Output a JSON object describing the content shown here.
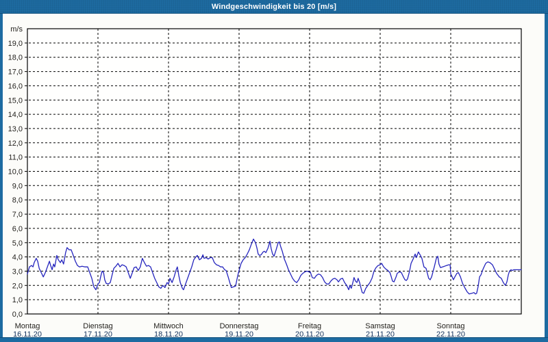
{
  "window": {
    "title": "Windgeschwindigkeit bis 20 [m/s]"
  },
  "colors": {
    "frame": "#1d6ba1",
    "frame_dark": "#0f4e7a",
    "title_text": "#ffffff",
    "plot_bg": "#fffffe",
    "grid": "#000000",
    "line": "#2424bd",
    "tick_label": "#23211d",
    "date_label": "#11305c"
  },
  "chart_data": {
    "type": "line",
    "title": "Windgeschwindigkeit bis 20 [m/s]",
    "ylabel": "m/s",
    "ylim": [
      0,
      20
    ],
    "y_tick_step": 1,
    "decimal_comma": true,
    "grid": "dashed",
    "legend": "none",
    "x_unit": "hours_since_start_of_week",
    "xlim": [
      0,
      168
    ],
    "days": [
      {
        "name": "Montag",
        "date": "16.11.20"
      },
      {
        "name": "Dienstag",
        "date": "17.11.20"
      },
      {
        "name": "Mittwoch",
        "date": "18.11.20"
      },
      {
        "name": "Donnerstag",
        "date": "19.11.20"
      },
      {
        "name": "Freitag",
        "date": "20.11.20"
      },
      {
        "name": "Samstag",
        "date": "21.11.20"
      },
      {
        "name": "Sonntag",
        "date": "22.11.20"
      }
    ],
    "series": [
      {
        "name": "Windgeschwindigkeit",
        "color": "#2424bd",
        "points": [
          [
            0,
            2.8
          ],
          [
            0.7,
            3.3
          ],
          [
            1.4,
            3.4
          ],
          [
            1.9,
            3.3
          ],
          [
            2.3,
            3.6
          ],
          [
            3,
            3.9
          ],
          [
            3.5,
            3.7
          ],
          [
            4,
            3.2
          ],
          [
            4.7,
            2.9
          ],
          [
            5.4,
            2.6
          ],
          [
            6.1,
            2.9
          ],
          [
            6.8,
            3.3
          ],
          [
            7.5,
            3.7
          ],
          [
            7.9,
            3.4
          ],
          [
            8.4,
            3.1
          ],
          [
            8.9,
            3.5
          ],
          [
            9.3,
            3.3
          ],
          [
            10,
            4.1
          ],
          [
            10.5,
            3.8
          ],
          [
            11.2,
            3.6
          ],
          [
            11.7,
            3.8
          ],
          [
            12.3,
            3.5
          ],
          [
            13,
            4.3
          ],
          [
            13.5,
            4.65
          ],
          [
            14.2,
            4.5
          ],
          [
            14.9,
            4.5
          ],
          [
            15.6,
            4.1
          ],
          [
            16.3,
            3.7
          ],
          [
            17,
            3.4
          ],
          [
            17.7,
            3.3
          ],
          [
            18.6,
            3.35
          ],
          [
            19.6,
            3.3
          ],
          [
            20.5,
            3.3
          ],
          [
            21.2,
            2.9
          ],
          [
            21.9,
            2.5
          ],
          [
            22.6,
            1.9
          ],
          [
            23.3,
            1.7
          ],
          [
            24,
            2.1
          ],
          [
            24.5,
            2.2
          ],
          [
            24.9,
            2.6
          ],
          [
            25.4,
            3
          ],
          [
            25.9,
            2.9
          ],
          [
            26.3,
            2.4
          ],
          [
            26.8,
            2.15
          ],
          [
            27.5,
            2.1
          ],
          [
            28.2,
            2.2
          ],
          [
            28.9,
            2.8
          ],
          [
            29.4,
            3.2
          ],
          [
            30.1,
            3.35
          ],
          [
            30.8,
            3.55
          ],
          [
            31.5,
            3.3
          ],
          [
            32.2,
            3.45
          ],
          [
            32.9,
            3.4
          ],
          [
            33.6,
            3.3
          ],
          [
            34.3,
            2.9
          ],
          [
            35,
            2.5
          ],
          [
            35.7,
            2.9
          ],
          [
            36.3,
            3.25
          ],
          [
            37,
            3.3
          ],
          [
            37.7,
            3.05
          ],
          [
            38.4,
            3.3
          ],
          [
            39.1,
            3.9
          ],
          [
            39.8,
            3.6
          ],
          [
            40.5,
            3.35
          ],
          [
            41.2,
            3.4
          ],
          [
            41.9,
            3.3
          ],
          [
            42.6,
            2.9
          ],
          [
            43.3,
            2.5
          ],
          [
            44,
            2.2
          ],
          [
            44.7,
            1.9
          ],
          [
            45.4,
            1.8
          ],
          [
            46.1,
            2
          ],
          [
            46.8,
            1.85
          ],
          [
            47.5,
            2.2
          ],
          [
            48,
            2.1
          ],
          [
            48.5,
            2.5
          ],
          [
            49.2,
            2.2
          ],
          [
            49.9,
            2.6
          ],
          [
            50.6,
            3.1
          ],
          [
            51,
            3.3
          ],
          [
            51.5,
            2.7
          ],
          [
            52,
            2.2
          ],
          [
            52.7,
            1.8
          ],
          [
            53.1,
            1.7
          ],
          [
            53.8,
            2.1
          ],
          [
            54.5,
            2.5
          ],
          [
            55.2,
            2.9
          ],
          [
            55.9,
            3.3
          ],
          [
            56.6,
            3.8
          ],
          [
            57.3,
            4
          ],
          [
            57.8,
            4.1
          ],
          [
            58.5,
            3.8
          ],
          [
            59.2,
            3.9
          ],
          [
            59.7,
            4.15
          ],
          [
            60.1,
            3.9
          ],
          [
            60.8,
            3.95
          ],
          [
            61.5,
            3.85
          ],
          [
            62.2,
            3.95
          ],
          [
            62.9,
            3.95
          ],
          [
            63.6,
            3.6
          ],
          [
            64.3,
            3.45
          ],
          [
            65,
            3.4
          ],
          [
            65.7,
            3.3
          ],
          [
            66.4,
            3.3
          ],
          [
            67.1,
            3.1
          ],
          [
            67.6,
            3.05
          ],
          [
            68.3,
            2.6
          ],
          [
            69,
            2.1
          ],
          [
            69.4,
            1.85
          ],
          [
            70.1,
            1.9
          ],
          [
            70.8,
            1.95
          ],
          [
            71.5,
            2.65
          ],
          [
            72,
            3.05
          ],
          [
            72.7,
            3.55
          ],
          [
            73.4,
            3.8
          ],
          [
            74.1,
            3.95
          ],
          [
            74.8,
            4.2
          ],
          [
            75.5,
            4.5
          ],
          [
            76.2,
            4.9
          ],
          [
            76.9,
            5.25
          ],
          [
            77.6,
            5
          ],
          [
            78.1,
            4.6
          ],
          [
            78.5,
            4.2
          ],
          [
            79,
            4.1
          ],
          [
            79.5,
            4.15
          ],
          [
            80.2,
            4.35
          ],
          [
            80.6,
            4.4
          ],
          [
            81.1,
            4.3
          ],
          [
            81.8,
            4.6
          ],
          [
            82.5,
            5.1
          ],
          [
            82.9,
            4.6
          ],
          [
            83.4,
            4.2
          ],
          [
            83.9,
            4.05
          ],
          [
            84.6,
            4.5
          ],
          [
            85.3,
            5
          ],
          [
            85.7,
            5.05
          ],
          [
            86.2,
            4.7
          ],
          [
            86.7,
            4.4
          ],
          [
            87.4,
            3.85
          ],
          [
            88.1,
            3.5
          ],
          [
            88.8,
            3.1
          ],
          [
            89.5,
            2.8
          ],
          [
            90.2,
            2.5
          ],
          [
            90.9,
            2.3
          ],
          [
            91.6,
            2.2
          ],
          [
            92.3,
            2.4
          ],
          [
            93,
            2.7
          ],
          [
            93.7,
            2.85
          ],
          [
            94.4,
            2.95
          ],
          [
            95.1,
            3
          ],
          [
            95.8,
            2.95
          ],
          [
            96.2,
            2.95
          ],
          [
            96.9,
            2.55
          ],
          [
            97.6,
            2.5
          ],
          [
            98.3,
            2.7
          ],
          [
            99,
            2.8
          ],
          [
            99.7,
            2.75
          ],
          [
            100.4,
            2.55
          ],
          [
            101.1,
            2.25
          ],
          [
            101.8,
            2.1
          ],
          [
            102.5,
            2.1
          ],
          [
            103.2,
            2.3
          ],
          [
            103.9,
            2.45
          ],
          [
            104.6,
            2.5
          ],
          [
            105.3,
            2.4
          ],
          [
            105.8,
            2.25
          ],
          [
            106.5,
            2.45
          ],
          [
            107.2,
            2.5
          ],
          [
            107.9,
            2.2
          ],
          [
            108.6,
            2
          ],
          [
            109.3,
            1.7
          ],
          [
            109.7,
            2
          ],
          [
            110.2,
            1.8
          ],
          [
            110.7,
            2.2
          ],
          [
            111.1,
            2.55
          ],
          [
            111.6,
            2.3
          ],
          [
            112.1,
            2.2
          ],
          [
            112.5,
            2.5
          ],
          [
            113,
            2.2
          ],
          [
            113.5,
            1.8
          ],
          [
            113.9,
            1.5
          ],
          [
            114.4,
            1.45
          ],
          [
            115.1,
            1.8
          ],
          [
            115.8,
            2
          ],
          [
            116.5,
            2.2
          ],
          [
            117.2,
            2.5
          ],
          [
            117.9,
            3
          ],
          [
            118.6,
            3.25
          ],
          [
            119.3,
            3.4
          ],
          [
            120,
            3.45
          ],
          [
            120.5,
            3.55
          ],
          [
            121.2,
            3.3
          ],
          [
            121.9,
            3.15
          ],
          [
            122.6,
            3.05
          ],
          [
            123.3,
            2.9
          ],
          [
            123.7,
            2.65
          ],
          [
            124.2,
            2.3
          ],
          [
            124.7,
            2.25
          ],
          [
            125.4,
            2.6
          ],
          [
            125.8,
            2.85
          ],
          [
            126.5,
            2.95
          ],
          [
            127.2,
            2.9
          ],
          [
            127.9,
            2.6
          ],
          [
            128.4,
            2.4
          ],
          [
            128.9,
            2.35
          ],
          [
            129.3,
            2.45
          ],
          [
            130,
            3
          ],
          [
            130.5,
            3.55
          ],
          [
            131.2,
            3.85
          ],
          [
            131.9,
            4.2
          ],
          [
            132.3,
            3.95
          ],
          [
            133,
            4.35
          ],
          [
            133.7,
            4.1
          ],
          [
            134.2,
            3.9
          ],
          [
            134.9,
            3.3
          ],
          [
            135.6,
            3.2
          ],
          [
            136.5,
            2.5
          ],
          [
            137,
            2.4
          ],
          [
            137.5,
            2.6
          ],
          [
            138.4,
            3.3
          ],
          [
            139.1,
            3.9
          ],
          [
            139.6,
            4.05
          ],
          [
            140,
            3.5
          ],
          [
            140.5,
            3.25
          ],
          [
            141.2,
            3.3
          ],
          [
            141.9,
            3.35
          ],
          [
            142.6,
            3.4
          ],
          [
            143.3,
            3.45
          ],
          [
            143.8,
            3.45
          ],
          [
            144,
            2.8
          ],
          [
            144.5,
            2.6
          ],
          [
            144.9,
            2.4
          ],
          [
            145.4,
            2.6
          ],
          [
            146.1,
            2.85
          ],
          [
            146.6,
            2.9
          ],
          [
            147.3,
            2.6
          ],
          [
            148,
            2.15
          ],
          [
            148.9,
            1.8
          ],
          [
            149.6,
            1.55
          ],
          [
            150.3,
            1.4
          ],
          [
            151.2,
            1.45
          ],
          [
            151.9,
            1.5
          ],
          [
            152.4,
            1.4
          ],
          [
            152.8,
            1.45
          ],
          [
            153.3,
            1.9
          ],
          [
            153.8,
            2.6
          ],
          [
            154.3,
            2.75
          ],
          [
            155,
            3.15
          ],
          [
            155.9,
            3.55
          ],
          [
            156.6,
            3.65
          ],
          [
            157.3,
            3.6
          ],
          [
            158.2,
            3.45
          ],
          [
            158.9,
            3.15
          ],
          [
            159.6,
            2.85
          ],
          [
            160.5,
            2.6
          ],
          [
            161.2,
            2.5
          ],
          [
            161.9,
            2.2
          ],
          [
            162.6,
            2
          ],
          [
            163.1,
            2.25
          ],
          [
            163.6,
            2.75
          ],
          [
            164,
            3
          ],
          [
            164.5,
            3.1
          ],
          [
            165,
            3.05
          ],
          [
            165.4,
            3.1
          ],
          [
            166.1,
            3.1
          ],
          [
            167.1,
            3.1
          ],
          [
            168,
            3.1
          ]
        ]
      }
    ]
  }
}
